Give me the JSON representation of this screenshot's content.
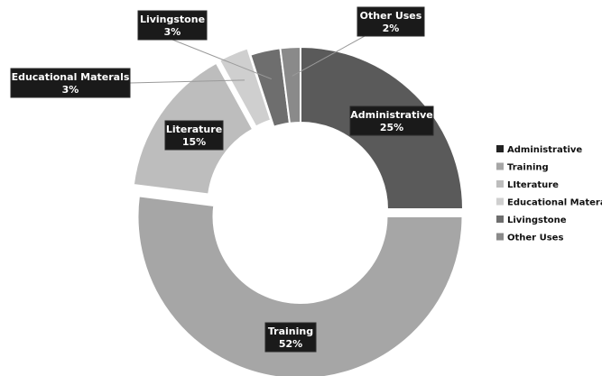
{
  "chart_data": {
    "type": "pie",
    "subtype": "donut",
    "title": "",
    "legend_position": "right",
    "categories": [
      "Administrative",
      "Training",
      "LIterature",
      "Educational Materals",
      "Livingstone",
      "Other Uses"
    ],
    "values": [
      25,
      52,
      15,
      3,
      3,
      2
    ],
    "percent_labels": [
      "25%",
      "52%",
      "15%",
      "3%",
      "3%",
      "2%"
    ],
    "callout_names": [
      "Administrative",
      "Training",
      "Literature",
      "Educational Materals",
      "Livingstone",
      "Other Uses"
    ],
    "legend_labels": [
      "Administrative",
      "Training",
      "LIterature",
      "Educational Materals",
      "Livingstone",
      "Other Uses"
    ],
    "colors": [
      "#5a5a5a",
      "#a6a6a6",
      "#bdbdbd",
      "#cfcfcf",
      "#6e6e6e",
      "#8a8a8a"
    ],
    "exploded_slices": [
      "Training",
      "LIterature",
      "Educational Materals"
    ]
  }
}
